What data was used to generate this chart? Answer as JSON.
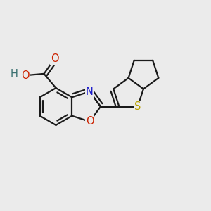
{
  "background_color": "#ebebeb",
  "bond_color": "#1a1a1a",
  "bond_width": 1.6,
  "atom_bg": "#ebebeb",
  "colors": {
    "O": "#cc2200",
    "N": "#2020cc",
    "S": "#b8a000",
    "H": "#3a7070"
  }
}
